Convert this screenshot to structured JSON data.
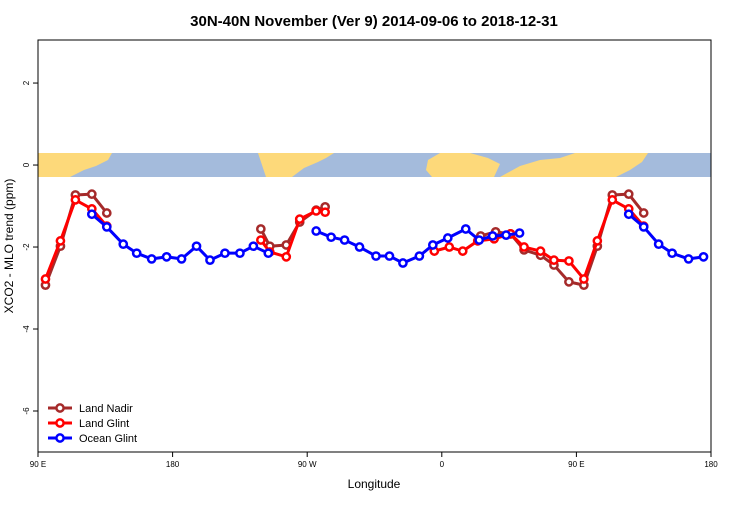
{
  "chart_data": {
    "type": "line",
    "title": "30N-40N November (Ver 9)   2014-09-06 to 2018-12-31",
    "x_label": "Longitude",
    "y_label": "XCO2 - MLO trend (ppm)",
    "xlim": [
      90,
      540
    ],
    "ylim": [
      -7,
      3.05
    ],
    "xticks": [
      {
        "value": 90,
        "label": "90 E"
      },
      180,
      {
        "value": 270,
        "label": "90 W"
      },
      {
        "value": 360,
        "label": "0"
      },
      {
        "value": 450,
        "label": "90 E"
      },
      {
        "value": 540,
        "label": "180"
      }
    ],
    "yticks": [
      -6,
      -4,
      -2,
      0,
      2
    ],
    "legend": "bottomleft",
    "series": [
      {
        "name": "Land Nadir",
        "color": "#a52a2a",
        "x": [
          95,
          105,
          115,
          126,
          136,
          null,
          239,
          245,
          256,
          265,
          276,
          282,
          null,
          386,
          396,
          406,
          415,
          426,
          435,
          445,
          455,
          464,
          474,
          485,
          495
        ],
        "values": [
          -2.93,
          -1.98,
          -0.73,
          -0.71,
          -1.17,
          null,
          -1.56,
          -1.98,
          -1.95,
          -1.39,
          -1.1,
          -1.02,
          null,
          -1.73,
          -1.63,
          -1.68,
          -2.07,
          -2.2,
          -2.44,
          -2.85,
          -2.93,
          -1.98,
          -0.73,
          -0.71,
          -1.17
        ]
      },
      {
        "name": "Land Glint",
        "color": "#ff0000",
        "x": [
          95,
          105,
          115,
          126,
          136,
          null,
          239,
          245,
          256,
          265,
          276,
          282,
          null,
          355,
          365,
          374,
          384,
          395,
          406,
          415,
          426,
          435,
          445,
          455,
          464,
          474,
          485,
          495
        ],
        "values": [
          -2.78,
          -1.85,
          -0.85,
          -1.07,
          -1.49,
          null,
          -1.83,
          -2.12,
          -2.24,
          -1.32,
          -1.12,
          -1.15,
          null,
          -2.1,
          -2.0,
          -2.1,
          -1.85,
          -1.8,
          -1.68,
          -2.0,
          -2.1,
          -2.32,
          -2.34,
          -2.78,
          -1.85,
          -0.85,
          -1.07,
          -1.49
        ]
      },
      {
        "name": "Ocean Glint",
        "color": "#0000ff",
        "x": [
          126,
          136,
          147,
          156,
          166,
          176,
          186,
          196,
          205,
          215,
          225,
          234,
          244,
          null,
          276,
          286,
          295,
          305,
          316,
          325,
          334,
          345,
          354,
          364,
          376,
          385,
          394,
          403,
          412,
          null,
          485,
          495,
          505,
          514,
          525,
          535
        ],
        "values": [
          -1.2,
          -1.51,
          -1.93,
          -2.15,
          -2.29,
          -2.24,
          -2.29,
          -1.98,
          -2.32,
          -2.15,
          -2.15,
          -1.98,
          -2.15,
          null,
          -1.61,
          -1.76,
          -1.83,
          -2.0,
          -2.22,
          -2.22,
          -2.39,
          -2.22,
          -1.95,
          -1.78,
          -1.56,
          -1.83,
          -1.73,
          -1.71,
          -1.66,
          null,
          -1.2,
          -1.51,
          -1.93,
          -2.15,
          -2.29,
          -2.24
        ]
      }
    ]
  }
}
